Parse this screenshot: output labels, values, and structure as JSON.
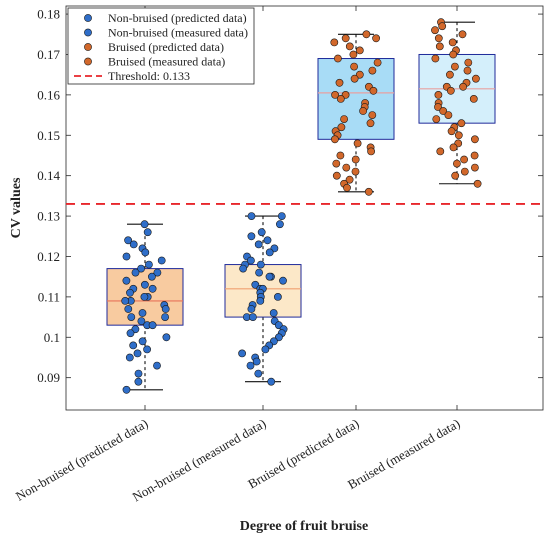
{
  "chart_data": {
    "type": "box",
    "title": "",
    "xlabel": "Degree of fruit bruise",
    "ylabel": "CV values",
    "ylim": [
      0.082,
      0.182
    ],
    "yticks": [
      0.09,
      0.1,
      0.11,
      0.12,
      0.13,
      0.14,
      0.15,
      0.16,
      0.17,
      0.18
    ],
    "ytick_labels": [
      "0.09",
      "0.1",
      "0.11",
      "0.12",
      "0.13",
      "0.14",
      "0.15",
      "0.16",
      "0.17",
      "0.18"
    ],
    "grid": false,
    "legend_position": "top-left",
    "categories": [
      "Non-bruised (predicted data)",
      "Non-bruised (measured data)",
      "Bruised (predicted data)",
      "Bruised (measured data)"
    ],
    "threshold": {
      "value": 0.133,
      "label": "Threshold: 0.133",
      "color": "#e8262b"
    },
    "legend": [
      {
        "label": "Non-bruised (predicted data)",
        "color": "#2f6ec9",
        "type": "marker"
      },
      {
        "label": "Non-bruised (measured data)",
        "color": "#2f6ec9",
        "type": "marker"
      },
      {
        "label": "Bruised (predicted data)",
        "color": "#d2682b",
        "type": "marker"
      },
      {
        "label": "Bruised (measured data)",
        "color": "#d2682b",
        "type": "marker"
      },
      {
        "label": "Threshold: 0.133",
        "color": "#e8262b",
        "type": "dashed-line"
      }
    ],
    "series": [
      {
        "name": "Non-bruised (predicted data)",
        "box": {
          "whisker_low": 0.087,
          "q1": 0.103,
          "median": 0.109,
          "q3": 0.117,
          "whisker_high": 0.128
        },
        "box_fill": "#f8cba0",
        "box_edge": "#1f2a9a",
        "median_color": "#e8735a",
        "point_color": "#2f6ec9",
        "points": [
          0.128,
          0.126,
          0.124,
          0.123,
          0.122,
          0.121,
          0.12,
          0.119,
          0.118,
          0.117,
          0.116,
          0.116,
          0.115,
          0.114,
          0.113,
          0.112,
          0.112,
          0.111,
          0.11,
          0.11,
          0.109,
          0.109,
          0.108,
          0.107,
          0.107,
          0.106,
          0.105,
          0.105,
          0.104,
          0.103,
          0.103,
          0.102,
          0.101,
          0.1,
          0.099,
          0.098,
          0.097,
          0.096,
          0.095,
          0.093,
          0.091,
          0.089,
          0.087
        ]
      },
      {
        "name": "Non-bruised (measured data)",
        "box": {
          "whisker_low": 0.089,
          "q1": 0.105,
          "median": 0.112,
          "q3": 0.118,
          "whisker_high": 0.13
        },
        "box_fill": "#fce8c8",
        "box_edge": "#1f2a9a",
        "median_color": "#f0a070",
        "point_color": "#2f6ec9",
        "points": [
          0.13,
          0.13,
          0.128,
          0.126,
          0.125,
          0.124,
          0.123,
          0.122,
          0.121,
          0.12,
          0.119,
          0.118,
          0.118,
          0.117,
          0.116,
          0.115,
          0.115,
          0.114,
          0.113,
          0.112,
          0.112,
          0.111,
          0.11,
          0.11,
          0.109,
          0.108,
          0.107,
          0.106,
          0.105,
          0.105,
          0.104,
          0.103,
          0.102,
          0.101,
          0.1,
          0.099,
          0.098,
          0.097,
          0.096,
          0.095,
          0.094,
          0.093,
          0.091,
          0.089
        ]
      },
      {
        "name": "Bruised (predicted data)",
        "box": {
          "whisker_low": 0.136,
          "q1": 0.149,
          "median": 0.1605,
          "q3": 0.169,
          "whisker_high": 0.175
        },
        "box_fill": "#a8dcf6",
        "box_edge": "#1f2a9a",
        "median_color": "#e8a0a0",
        "point_color": "#d2682b",
        "points": [
          0.175,
          0.174,
          0.174,
          0.173,
          0.172,
          0.171,
          0.17,
          0.169,
          0.168,
          0.167,
          0.166,
          0.165,
          0.164,
          0.163,
          0.162,
          0.161,
          0.16,
          0.16,
          0.159,
          0.158,
          0.157,
          0.156,
          0.155,
          0.154,
          0.153,
          0.152,
          0.151,
          0.15,
          0.149,
          0.148,
          0.147,
          0.146,
          0.145,
          0.144,
          0.143,
          0.142,
          0.141,
          0.14,
          0.139,
          0.138,
          0.137,
          0.136
        ]
      },
      {
        "name": "Bruised (measured data)",
        "box": {
          "whisker_low": 0.138,
          "q1": 0.153,
          "median": 0.1615,
          "q3": 0.17,
          "whisker_high": 0.178
        },
        "box_fill": "#d4effb",
        "box_edge": "#1f2a9a",
        "median_color": "#e8a0a0",
        "point_color": "#d2682b",
        "points": [
          0.178,
          0.177,
          0.176,
          0.175,
          0.174,
          0.173,
          0.172,
          0.171,
          0.17,
          0.169,
          0.168,
          0.167,
          0.166,
          0.165,
          0.164,
          0.163,
          0.162,
          0.162,
          0.161,
          0.16,
          0.159,
          0.158,
          0.157,
          0.156,
          0.155,
          0.154,
          0.153,
          0.152,
          0.151,
          0.15,
          0.149,
          0.148,
          0.147,
          0.146,
          0.145,
          0.144,
          0.143,
          0.142,
          0.141,
          0.14,
          0.138
        ]
      }
    ]
  }
}
